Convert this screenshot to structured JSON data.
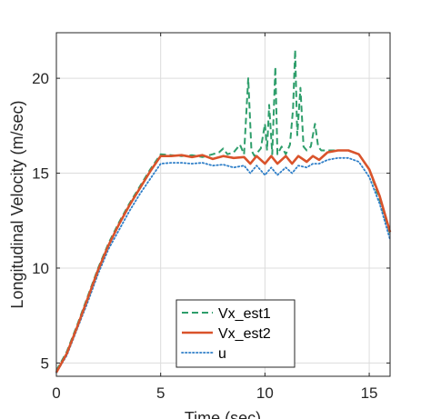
{
  "chart_data": {
    "type": "line",
    "xlabel": "Time (sec)",
    "ylabel": "Longitudinal Velocity (m/sec)",
    "xlim": [
      0,
      16
    ],
    "ylim": [
      4.3,
      22.4
    ],
    "xticks": [
      0,
      5,
      10,
      15
    ],
    "yticks": [
      5,
      10,
      15,
      20
    ],
    "grid": true,
    "legend_position": "bottom-center",
    "series": [
      {
        "name": "Vx_est1",
        "color": "#2e9e6b",
        "style": "dashed",
        "x": [
          0,
          0.5,
          1,
          1.5,
          2,
          2.5,
          3,
          3.5,
          4,
          4.5,
          5,
          5.5,
          6,
          6.5,
          7,
          7.5,
          7.8,
          8.0,
          8.2,
          8.5,
          8.8,
          9.0,
          9.2,
          9.35,
          9.5,
          9.8,
          10.0,
          10.1,
          10.2,
          10.35,
          10.5,
          10.6,
          10.8,
          11.0,
          11.2,
          11.35,
          11.45,
          11.55,
          11.7,
          11.85,
          12.0,
          12.2,
          12.4,
          12.55,
          12.7,
          13.0,
          13.5,
          14.0,
          14.5,
          15.0,
          15.5,
          16.0
        ],
        "values": [
          4.6,
          5.6,
          7.0,
          8.5,
          10.0,
          11.3,
          12.4,
          13.4,
          14.3,
          15.2,
          16.0,
          15.95,
          15.9,
          15.95,
          15.85,
          16.0,
          16.1,
          16.3,
          16.0,
          16.1,
          16.5,
          16.0,
          20.0,
          16.2,
          15.9,
          16.3,
          17.6,
          16.2,
          18.6,
          16.0,
          20.6,
          16.0,
          16.4,
          16.0,
          16.5,
          18.4,
          21.5,
          17.0,
          19.5,
          16.4,
          16.2,
          16.4,
          17.6,
          16.4,
          16.2,
          16.2,
          16.2,
          16.2,
          16.0,
          15.2,
          13.6,
          11.8
        ]
      },
      {
        "name": "Vx_est2",
        "color": "#d9532b",
        "style": "solid",
        "x": [
          0,
          0.5,
          1,
          1.5,
          2,
          2.5,
          3,
          3.5,
          4,
          4.5,
          5,
          5.5,
          6,
          6.5,
          7,
          7.5,
          8,
          8.5,
          9,
          9.3,
          9.6,
          10.0,
          10.3,
          10.6,
          11.0,
          11.3,
          11.6,
          12.0,
          12.3,
          12.6,
          13.0,
          13.5,
          14.0,
          14.5,
          15.0,
          15.5,
          16.0
        ],
        "values": [
          4.5,
          5.5,
          6.9,
          8.4,
          9.9,
          11.2,
          12.3,
          13.3,
          14.2,
          15.1,
          15.9,
          15.9,
          15.95,
          15.85,
          15.95,
          15.75,
          15.9,
          15.8,
          15.85,
          15.5,
          15.9,
          15.5,
          15.9,
          15.5,
          15.9,
          15.5,
          15.9,
          15.6,
          15.9,
          15.7,
          16.1,
          16.2,
          16.2,
          16.0,
          15.2,
          13.8,
          11.9
        ]
      },
      {
        "name": "u",
        "color": "#2f7fc8",
        "style": "dotted",
        "x": [
          0,
          0.5,
          1,
          1.5,
          2,
          2.5,
          3,
          3.5,
          4,
          4.5,
          5,
          5.5,
          6,
          6.5,
          7,
          7.5,
          8,
          8.5,
          9,
          9.3,
          9.6,
          10.0,
          10.3,
          10.6,
          11.0,
          11.3,
          11.6,
          12.0,
          12.3,
          12.6,
          13.0,
          13.5,
          14.0,
          14.5,
          15.0,
          15.5,
          16.0
        ],
        "values": [
          4.5,
          5.4,
          6.8,
          8.2,
          9.7,
          11.0,
          12.0,
          13.0,
          13.9,
          14.7,
          15.5,
          15.55,
          15.55,
          15.5,
          15.55,
          15.4,
          15.45,
          15.3,
          15.4,
          15.0,
          15.4,
          14.9,
          15.3,
          14.9,
          15.3,
          15.0,
          15.4,
          15.3,
          15.5,
          15.5,
          15.7,
          15.8,
          15.8,
          15.6,
          14.8,
          13.4,
          11.5
        ]
      }
    ]
  }
}
